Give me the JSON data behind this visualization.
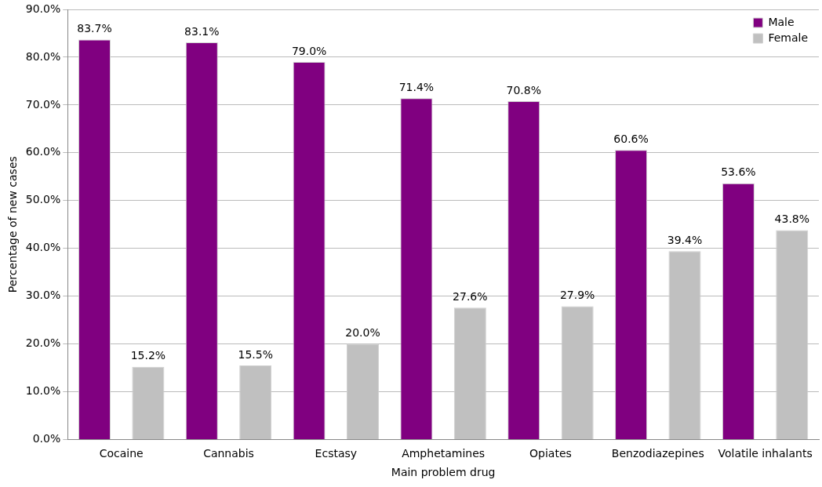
{
  "chart_data": {
    "type": "bar",
    "xlabel": "Main problem drug",
    "ylabel": "Percentage of new cases",
    "categories": [
      "Cocaine",
      "Cannabis",
      "Ecstasy",
      "Amphetamines",
      "Opiates",
      "Benzodiazepines",
      "Volatile inhalants"
    ],
    "series": [
      {
        "name": "Male",
        "color": "#800080",
        "values": [
          83.7,
          83.1,
          79.0,
          71.4,
          70.8,
          60.6,
          53.6
        ],
        "value_labels": [
          "83.7%",
          "83.1%",
          "79.0%",
          "71.4%",
          "70.8%",
          "60.6%",
          "53.6%"
        ]
      },
      {
        "name": "Female",
        "color": "#c0c0c0",
        "values": [
          15.2,
          15.5,
          20.0,
          27.6,
          27.9,
          39.4,
          43.8
        ],
        "value_labels": [
          "15.2%",
          "15.5%",
          "20.0%",
          "27.6%",
          "27.9%",
          "39.4%",
          "43.8%"
        ]
      }
    ],
    "ylim": [
      0,
      90
    ],
    "yticks": [
      {
        "value": 0,
        "label": "0.0%"
      },
      {
        "value": 10,
        "label": "10.0%"
      },
      {
        "value": 20,
        "label": "20.0%"
      },
      {
        "value": 30,
        "label": "30.0%"
      },
      {
        "value": 40,
        "label": "40.0%"
      },
      {
        "value": 50,
        "label": "50.0%"
      },
      {
        "value": 60,
        "label": "60.0%"
      },
      {
        "value": 70,
        "label": "70.0%"
      },
      {
        "value": 80,
        "label": "80.0%"
      },
      {
        "value": 90,
        "label": "90.0%"
      }
    ],
    "grid": "y",
    "legend": "top right"
  }
}
